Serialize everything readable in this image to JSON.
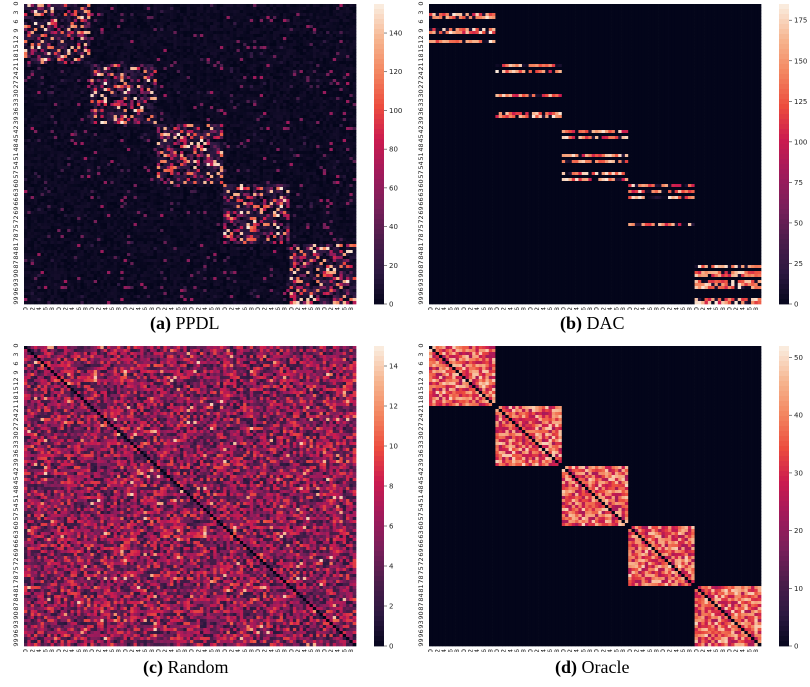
{
  "chart_data": [
    {
      "type": "heatmap",
      "letter": "(a)",
      "caption": "PPDL",
      "size": 100,
      "cluster_blocks": [
        [
          0,
          20
        ],
        [
          20,
          40
        ],
        [
          40,
          60
        ],
        [
          60,
          80
        ],
        [
          80,
          100
        ]
      ],
      "pattern": "dense diagonal blocks with moderate noise",
      "xticks": [
        0,
        2,
        4,
        6,
        8,
        10,
        12,
        14,
        16,
        18,
        20,
        22,
        24,
        26,
        28,
        30,
        32,
        34,
        36,
        38,
        40,
        42,
        44,
        46,
        48,
        50,
        52,
        54,
        56,
        58,
        60,
        62,
        64,
        66,
        68,
        70,
        72,
        74,
        76,
        78,
        80,
        82,
        84,
        86,
        88,
        90,
        92,
        94,
        96,
        98
      ],
      "yticks": [
        0,
        3,
        6,
        9,
        12,
        15,
        18,
        21,
        24,
        27,
        30,
        33,
        36,
        39,
        42,
        45,
        48,
        51,
        54,
        57,
        60,
        63,
        66,
        69,
        72,
        75,
        78,
        81,
        84,
        87,
        90,
        93,
        96,
        99
      ],
      "colorbar": {
        "min": 0,
        "max": 155,
        "ticks": [
          0,
          20,
          40,
          60,
          80,
          100,
          120,
          140
        ]
      }
    },
    {
      "type": "heatmap",
      "letter": "(b)",
      "caption": "DAC",
      "size": 100,
      "cluster_blocks": [
        [
          0,
          20
        ],
        [
          20,
          40
        ],
        [
          40,
          60
        ],
        [
          60,
          80
        ],
        [
          80,
          100
        ]
      ],
      "pattern": "sparse horizontal stripes inside diagonal blocks",
      "xticks": [
        0,
        2,
        4,
        6,
        8,
        10,
        12,
        14,
        16,
        18,
        20,
        22,
        24,
        26,
        28,
        30,
        32,
        34,
        36,
        38,
        40,
        42,
        44,
        46,
        48,
        50,
        52,
        54,
        56,
        58,
        60,
        62,
        64,
        66,
        68,
        70,
        72,
        74,
        76,
        78,
        80,
        82,
        84,
        86,
        88,
        90,
        92,
        94,
        96,
        98
      ],
      "yticks": [
        0,
        3,
        6,
        9,
        12,
        15,
        18,
        21,
        24,
        27,
        30,
        33,
        36,
        39,
        42,
        45,
        48,
        51,
        54,
        57,
        60,
        63,
        66,
        69,
        72,
        75,
        78,
        81,
        84,
        87,
        90,
        93,
        96,
        99
      ],
      "colorbar": {
        "min": 0,
        "max": 185,
        "ticks": [
          0,
          25,
          50,
          75,
          100,
          125,
          150,
          175
        ]
      }
    },
    {
      "type": "heatmap",
      "letter": "(c)",
      "caption": "Random",
      "size": 100,
      "cluster_blocks": [],
      "pattern": "uniform random with zero diagonal",
      "xticks": [
        0,
        2,
        4,
        6,
        8,
        10,
        12,
        14,
        16,
        18,
        20,
        22,
        24,
        26,
        28,
        30,
        32,
        34,
        36,
        38,
        40,
        42,
        44,
        46,
        48,
        50,
        52,
        54,
        56,
        58,
        60,
        62,
        64,
        66,
        68,
        70,
        72,
        74,
        76,
        78,
        80,
        82,
        84,
        86,
        88,
        90,
        92,
        94,
        96,
        98
      ],
      "yticks": [
        0,
        3,
        6,
        9,
        12,
        15,
        18,
        21,
        24,
        27,
        30,
        33,
        36,
        39,
        42,
        45,
        48,
        51,
        54,
        57,
        60,
        63,
        66,
        69,
        72,
        75,
        78,
        81,
        84,
        87,
        90,
        93,
        96,
        99
      ],
      "colorbar": {
        "min": 0,
        "max": 15,
        "ticks": [
          0,
          2,
          4,
          6,
          8,
          10,
          12,
          14
        ]
      }
    },
    {
      "type": "heatmap",
      "letter": "(d)",
      "caption": "Oracle",
      "size": 100,
      "cluster_blocks": [
        [
          0,
          20
        ],
        [
          20,
          40
        ],
        [
          40,
          60
        ],
        [
          60,
          80
        ],
        [
          80,
          100
        ]
      ],
      "pattern": "full diagonal blocks with zero diagonal",
      "xticks": [
        0,
        2,
        4,
        6,
        8,
        10,
        12,
        14,
        16,
        18,
        20,
        22,
        24,
        26,
        28,
        30,
        32,
        34,
        36,
        38,
        40,
        42,
        44,
        46,
        48,
        50,
        52,
        54,
        56,
        58,
        60,
        62,
        64,
        66,
        68,
        70,
        72,
        74,
        76,
        78,
        80,
        82,
        84,
        86,
        88,
        90,
        92,
        94,
        96,
        98
      ],
      "yticks": [
        0,
        3,
        6,
        9,
        12,
        15,
        18,
        21,
        24,
        27,
        30,
        33,
        36,
        39,
        42,
        45,
        48,
        51,
        54,
        57,
        60,
        63,
        66,
        69,
        72,
        75,
        78,
        81,
        84,
        87,
        90,
        93,
        96,
        99
      ],
      "colorbar": {
        "min": 0,
        "max": 52,
        "ticks": [
          0,
          10,
          20,
          30,
          40,
          50
        ]
      }
    }
  ],
  "colors": {
    "background_low": "#03051a",
    "colormap": [
      "#03051a",
      "#2b1840",
      "#4c1d4b",
      "#7a1f5a",
      "#a11a5b",
      "#cb1b4f",
      "#ec4c3e",
      "#f3855f",
      "#f6b48e",
      "#faebdd"
    ]
  }
}
